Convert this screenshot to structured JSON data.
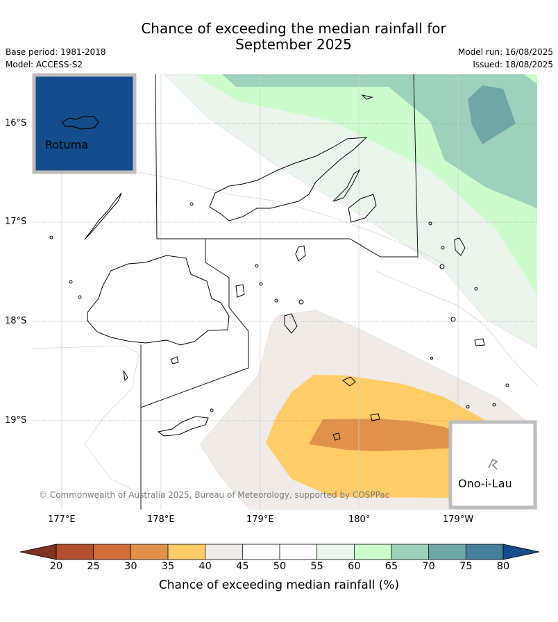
{
  "title": {
    "line1": "Chance of exceeding the median rainfall for",
    "line2": "September 2025"
  },
  "meta_left": {
    "base_period": "Base period: 1981-2018",
    "model": "Model: ACCESS-S2"
  },
  "meta_right": {
    "model_run": "Model run: 16/08/2025",
    "issued": "Issued: 18/08/2025"
  },
  "map": {
    "lat_labels": [
      "16°S",
      "17°S",
      "18°S",
      "19°S"
    ],
    "lon_labels": [
      "177°E",
      "178°E",
      "179°E",
      "180°",
      "179°W"
    ],
    "insets": {
      "top_left": "Rotuma",
      "bottom_right": "Ono-i-Lau"
    },
    "copyright": "© Commonwealth of Australia 2025, Bureau of Meteorology, supported by COSPPac",
    "category_colors": {
      "55-60": "#ebf5eb",
      "60-65": "#ccfccc",
      "65-70": "#9ed1bb",
      "70-75": "#70a8a6",
      "40-45": "#f0ebe6",
      "35-40": "#ffcc66",
      "30-35": "#e0924a",
      "ocean_inset": "#134d8b"
    }
  },
  "colorbar": {
    "ticks": [
      "20",
      "25",
      "30",
      "35",
      "40",
      "45",
      "50",
      "55",
      "60",
      "65",
      "70",
      "75",
      "80"
    ],
    "colors": [
      "#7f3422",
      "#b24e2c",
      "#d26c3b",
      "#e0924a",
      "#ffcc66",
      "#f0ebe6",
      "#ffffff",
      "#ffffff",
      "#ebf5eb",
      "#ccfccc",
      "#9ed1bb",
      "#70a8a6",
      "#467f9c",
      "#134d8b"
    ],
    "title": "Chance of exceeding median rainfall (%)"
  }
}
